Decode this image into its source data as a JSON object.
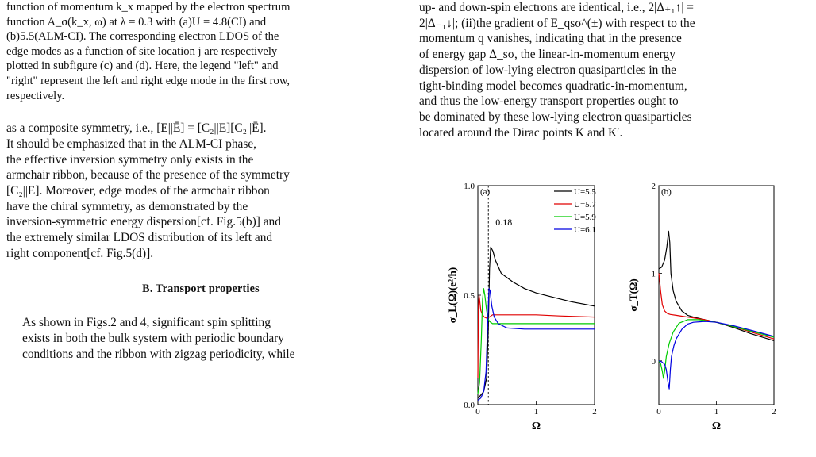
{
  "left_column": {
    "caption_lines": [
      "function of momentum k_x mapped by the electron spectrum",
      "function A_σ(k_x, ω) at λ = 0.3 with (a)U = 4.8(CI) and",
      "(b)5.5(ALM-CI). The corresponding electron LDOS of the",
      "edge modes as a function of site location j are respectively",
      "plotted in subfigure (c) and (d). Here, the legend \"left\" and",
      "\"right\" represent the left and right edge mode in the first row,",
      "respectively."
    ],
    "para1_lines": [
      "as a composite symmetry, i.e., [E||Ē] = [C₂||E][C₂||Ē].",
      "It should be emphasized that in the ALM-CI phase,",
      "the effective inversion symmetry only exists in the",
      "armchair ribbon, because of the presence of the symmetry",
      "[C₂||E]. Moreover, edge modes of the armchair ribbon",
      "have the chiral symmetry, as demonstrated by the",
      "inversion-symmetric energy dispersion[cf. Fig.5(b)] and",
      "the extremely similar LDOS distribution of its left and",
      "right component[cf. Fig.5(d)]."
    ],
    "section_title": "B.    Transport properties",
    "para2_lines": [
      "As shown in Figs.2 and 4, significant spin splitting",
      "exists in both the bulk system with periodic boundary",
      "conditions and the ribbon with zigzag periodicity, while"
    ]
  },
  "right_column": {
    "lines": [
      "up- and down-spin electrons are identical, i.e., 2|Δ₊₁↑| =",
      "2|Δ₋₁↓|; (ii)the gradient of E_qsσ^(±) with respect to the",
      "momentum q vanishes, indicating that in the presence",
      "of energy gap Δ_sσ, the linear-in-momentum energy",
      "dispersion of low-lying electron quasiparticles in the",
      "tight-binding model becomes quadratic-in-momentum,",
      "and thus the low-energy transport properties ought to",
      "be dominated by these low-lying electron quasiparticles",
      "located around the Dirac points K and K′."
    ]
  },
  "chart_data": [
    {
      "type": "line",
      "panel_label": "(a)",
      "xlabel": "Ω",
      "ylabel": "σ_L(Ω)(e²/h)",
      "xlim": [
        0,
        2
      ],
      "ylim": [
        0,
        1.0
      ],
      "x_ticks": [
        0,
        1,
        2
      ],
      "y_ticks": [
        "0.0",
        "0.5",
        "1.0"
      ],
      "legend_position": "top-right",
      "annotation": {
        "x": 0.18,
        "label": "0.18",
        "style": "dashed vertical line"
      },
      "series": [
        {
          "name": "U=5.5",
          "color": "#000000",
          "x": [
            0.0,
            0.04,
            0.1,
            0.15,
            0.18,
            0.2,
            0.22,
            0.26,
            0.3,
            0.4,
            0.6,
            0.8,
            1.0,
            1.3,
            1.6,
            2.0
          ],
          "y": [
            0.03,
            0.04,
            0.06,
            0.12,
            0.35,
            0.62,
            0.72,
            0.7,
            0.66,
            0.6,
            0.56,
            0.53,
            0.51,
            0.49,
            0.47,
            0.45
          ]
        },
        {
          "name": "U=5.7",
          "color": "#e00000",
          "x": [
            0.0,
            0.01,
            0.02,
            0.03,
            0.05,
            0.08,
            0.11,
            0.15,
            0.2,
            0.25,
            0.3,
            0.5,
            0.8,
            1.0,
            1.4,
            2.0
          ],
          "y": [
            0.12,
            0.45,
            0.5,
            0.48,
            0.43,
            0.41,
            0.4,
            0.395,
            0.4,
            0.41,
            0.41,
            0.41,
            0.41,
            0.41,
            0.405,
            0.4
          ]
        },
        {
          "name": "U=5.9",
          "color": "#00cc00",
          "x": [
            0.0,
            0.03,
            0.06,
            0.08,
            0.1,
            0.12,
            0.15,
            0.18,
            0.2,
            0.25,
            0.3,
            0.5,
            1.0,
            1.5,
            2.0
          ],
          "y": [
            0.05,
            0.1,
            0.3,
            0.48,
            0.53,
            0.5,
            0.43,
            0.39,
            0.38,
            0.37,
            0.37,
            0.37,
            0.37,
            0.37,
            0.37
          ]
        },
        {
          "name": "U=6.1",
          "color": "#0000e0",
          "x": [
            0.0,
            0.05,
            0.1,
            0.14,
            0.17,
            0.19,
            0.21,
            0.24,
            0.28,
            0.35,
            0.5,
            0.8,
            1.0,
            1.5,
            2.0
          ],
          "y": [
            0.02,
            0.03,
            0.06,
            0.15,
            0.38,
            0.53,
            0.52,
            0.45,
            0.4,
            0.37,
            0.35,
            0.345,
            0.345,
            0.345,
            0.345
          ]
        }
      ]
    },
    {
      "type": "line",
      "panel_label": "(b)",
      "xlabel": "Ω",
      "ylabel": "σ_T(Ω)",
      "xlim": [
        0,
        2
      ],
      "ylim": [
        -0.5,
        2
      ],
      "x_ticks": [
        0,
        1,
        2
      ],
      "y_ticks": [
        "0",
        "1",
        "2"
      ],
      "series": [
        {
          "name": "U=5.5",
          "color": "#000000",
          "x": [
            0.0,
            0.05,
            0.1,
            0.14,
            0.17,
            0.19,
            0.21,
            0.25,
            0.3,
            0.4,
            0.5,
            0.6,
            0.8,
            1.0,
            1.3,
            1.6,
            2.0
          ],
          "y": [
            1.05,
            1.07,
            1.15,
            1.3,
            1.48,
            1.35,
            1.0,
            0.8,
            0.68,
            0.57,
            0.52,
            0.5,
            0.47,
            0.44,
            0.38,
            0.31,
            0.23
          ]
        },
        {
          "name": "U=5.7",
          "color": "#e00000",
          "x": [
            0.0,
            0.01,
            0.03,
            0.06,
            0.1,
            0.15,
            0.2,
            0.3,
            0.4,
            0.5,
            0.6,
            0.8,
            1.0,
            1.3,
            1.6,
            2.0
          ],
          "y": [
            1.0,
            0.95,
            0.8,
            0.64,
            0.57,
            0.54,
            0.53,
            0.52,
            0.51,
            0.5,
            0.49,
            0.47,
            0.44,
            0.39,
            0.33,
            0.25
          ]
        },
        {
          "name": "U=5.9",
          "color": "#00cc00",
          "x": [
            0.0,
            0.03,
            0.06,
            0.08,
            0.1,
            0.13,
            0.18,
            0.25,
            0.35,
            0.5,
            0.7,
            0.8,
            1.0,
            1.3,
            1.6,
            2.0
          ],
          "y": [
            0.0,
            -0.03,
            -0.12,
            -0.2,
            -0.12,
            0.05,
            0.2,
            0.33,
            0.43,
            0.47,
            0.47,
            0.46,
            0.44,
            0.39,
            0.34,
            0.27
          ]
        },
        {
          "name": "U=6.1",
          "color": "#0000e0",
          "x": [
            0.0,
            0.05,
            0.1,
            0.13,
            0.16,
            0.18,
            0.2,
            0.22,
            0.26,
            0.3,
            0.4,
            0.5,
            0.6,
            0.8,
            1.0,
            1.3,
            1.6,
            2.0
          ],
          "y": [
            0.0,
            -0.01,
            -0.04,
            -0.1,
            -0.25,
            -0.32,
            -0.1,
            0.05,
            0.17,
            0.25,
            0.36,
            0.42,
            0.44,
            0.45,
            0.44,
            0.4,
            0.35,
            0.28
          ]
        }
      ]
    }
  ]
}
